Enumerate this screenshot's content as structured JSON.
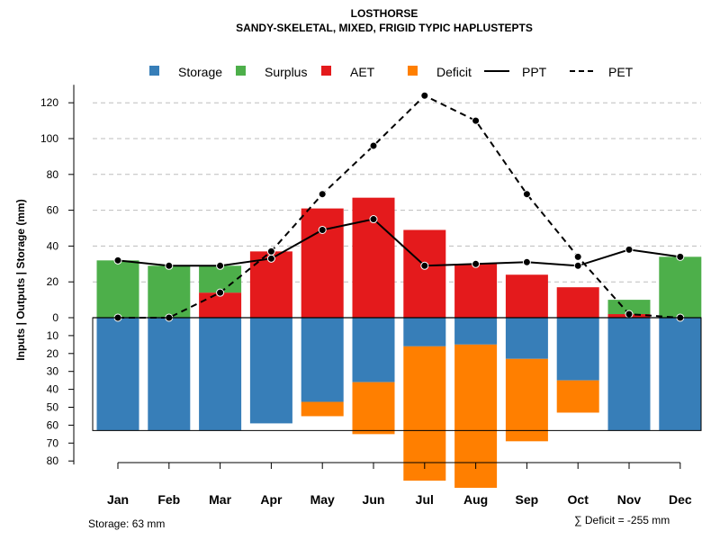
{
  "chart_data": {
    "type": "bar",
    "title": "LOSTHORSE",
    "subtitle": "SANDY-SKELETAL, MIXED, FRIGID TYPIC HAPLUSTEPTS",
    "ylabel": "Inputs | Outputs | Storage    (mm)",
    "categories": [
      "Jan",
      "Feb",
      "Mar",
      "Apr",
      "May",
      "Jun",
      "Jul",
      "Aug",
      "Sep",
      "Oct",
      "Nov",
      "Dec"
    ],
    "positive_ticks": [
      "0",
      "20",
      "40",
      "60",
      "80",
      "100",
      "120"
    ],
    "negative_ticks": [
      "10",
      "20",
      "30",
      "40",
      "50",
      "60",
      "70",
      "80"
    ],
    "ylim_positive": [
      0,
      130
    ],
    "ylim_negative": [
      0,
      82
    ],
    "legend": {
      "storage": "Storage",
      "surplus": "Surplus",
      "aet": "AET",
      "deficit": "Deficit",
      "ppt": "PPT",
      "pet": "PET"
    },
    "colors": {
      "storage": "#377eb8",
      "surplus": "#4daf4a",
      "aet": "#e41a1c",
      "deficit": "#ff7f00",
      "line": "#000000",
      "grid": "#bdbdbd"
    },
    "series": [
      {
        "name": "AET",
        "values": [
          0,
          0,
          14,
          37,
          61,
          67,
          49,
          30,
          24,
          17,
          2,
          0
        ]
      },
      {
        "name": "Surplus",
        "values": [
          32,
          29,
          15,
          0,
          0,
          0,
          0,
          0,
          0,
          0,
          8,
          34
        ]
      },
      {
        "name": "Storage",
        "values": [
          63,
          63,
          63,
          59,
          47,
          36,
          16,
          15,
          23,
          35,
          63,
          63
        ]
      },
      {
        "name": "Deficit",
        "values": [
          0,
          0,
          0,
          0,
          8,
          29,
          75,
          80,
          46,
          18,
          0,
          0
        ]
      },
      {
        "name": "PPT",
        "values": [
          32,
          29,
          29,
          33,
          49,
          55,
          29,
          30,
          31,
          29,
          38,
          34
        ]
      },
      {
        "name": "PET",
        "values": [
          0,
          0,
          14,
          37,
          69,
          96,
          124,
          110,
          69,
          34,
          2,
          0
        ]
      }
    ],
    "storage_capacity": 63,
    "storage_note": "Storage: 63 mm",
    "deficit_note": "∑ Deficit = -255 mm"
  }
}
